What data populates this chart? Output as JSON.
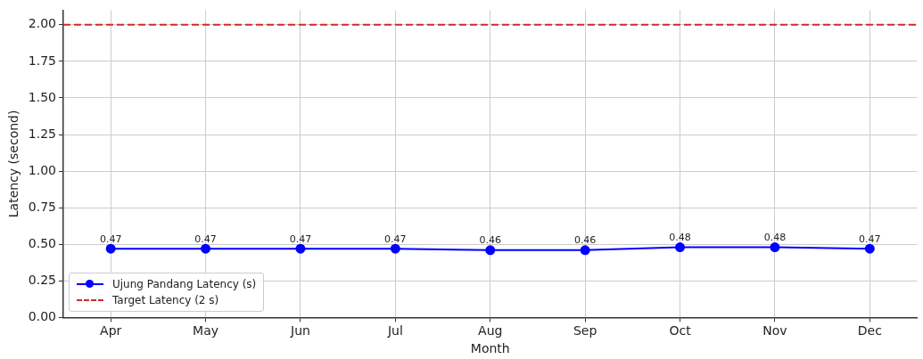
{
  "chart_data": {
    "type": "line",
    "xlabel": "Month",
    "ylabel": "Latency (second)",
    "categories": [
      "Apr",
      "May",
      "Jun",
      "Jul",
      "Aug",
      "Sep",
      "Oct",
      "Nov",
      "Dec"
    ],
    "series": [
      {
        "name": "Ujung Pandang Latency (s)",
        "color": "#0000ff",
        "values": [
          0.47,
          0.47,
          0.47,
          0.47,
          0.46,
          0.46,
          0.48,
          0.48,
          0.47
        ]
      }
    ],
    "ref_lines": [
      {
        "axis": "y",
        "value": 2,
        "label": "Target Latency (2 s)",
        "color": "#d62728",
        "line_style": "dashed"
      }
    ],
    "ylim": [
      0,
      2.1
    ],
    "yticks": [
      {
        "value": 0,
        "label": "0.00"
      },
      {
        "value": 0.25,
        "label": "0.25"
      },
      {
        "value": 0.5,
        "label": "0.50"
      },
      {
        "value": 0.75,
        "label": "0.75"
      },
      {
        "value": 1,
        "label": "1.00"
      },
      {
        "value": 1.25,
        "label": "1.25"
      },
      {
        "value": 1.5,
        "label": "1.50"
      },
      {
        "value": 1.75,
        "label": "1.75"
      },
      {
        "value": 2,
        "label": "2.00"
      }
    ],
    "grid": true,
    "legend": "bottom left",
    "marker": "circle",
    "line_style": "solid",
    "data_labels": true
  }
}
